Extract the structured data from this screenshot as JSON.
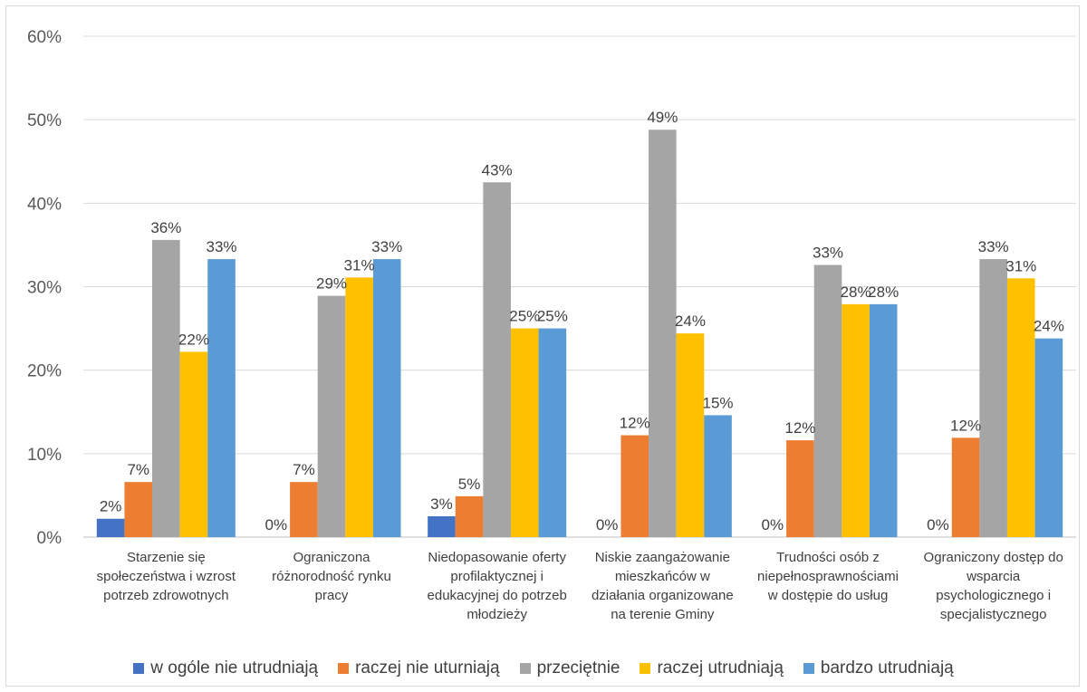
{
  "chart_data": {
    "type": "bar",
    "title": "",
    "xlabel": "",
    "ylabel": "",
    "ylim": [
      0,
      0.6
    ],
    "yticks": [
      "0%",
      "10%",
      "20%",
      "30%",
      "40%",
      "50%",
      "60%"
    ],
    "grid": true,
    "legend_position": "bottom",
    "categories": [
      [
        "Starzenie się",
        "społeczeństwa i wzrost",
        "potrzeb zdrowotnych"
      ],
      [
        "Ograniczona",
        "różnorodność rynku",
        "pracy"
      ],
      [
        "Niedopasowanie oferty",
        "profilaktycznej i",
        "edukacyjnej do potrzeb",
        "młodzieży"
      ],
      [
        "Niskie zaangażowanie",
        "mieszkańców w",
        "działania organizowane",
        "na terenie Gminy"
      ],
      [
        "Trudności osób z",
        "niepełnosprawnościami",
        "w dostępie do usług"
      ],
      [
        "Ograniczony dostęp do",
        "wsparcia",
        "psychologicznego i",
        "specjalistycznego"
      ]
    ],
    "series": [
      {
        "name": "w ogóle nie utrudniają",
        "color": "#4472C4",
        "values": [
          0.022,
          0.0,
          0.025,
          0.0,
          0.0,
          0.0
        ],
        "labels": [
          "2%",
          "0%",
          "3%",
          "0%",
          "0%",
          "0%"
        ]
      },
      {
        "name": "raczej nie uturniają",
        "color": "#ED7D31",
        "values": [
          0.066,
          0.066,
          0.049,
          0.122,
          0.116,
          0.119
        ],
        "labels": [
          "7%",
          "7%",
          "5%",
          "12%",
          "12%",
          "12%"
        ]
      },
      {
        "name": "przeciętnie",
        "color": "#A5A5A5",
        "values": [
          0.356,
          0.289,
          0.425,
          0.488,
          0.326,
          0.333
        ],
        "labels": [
          "36%",
          "29%",
          "43%",
          "49%",
          "33%",
          "33%"
        ]
      },
      {
        "name": "raczej utrudniają",
        "color": "#FFC000",
        "values": [
          0.222,
          0.311,
          0.25,
          0.244,
          0.279,
          0.31
        ],
        "labels": [
          "22%",
          "31%",
          "25%",
          "24%",
          "28%",
          "31%"
        ]
      },
      {
        "name": "bardzo utrudniają",
        "color": "#5B9BD5",
        "values": [
          0.333,
          0.333,
          0.25,
          0.146,
          0.279,
          0.238
        ],
        "labels": [
          "33%",
          "33%",
          "25%",
          "15%",
          "28%",
          "24%"
        ]
      }
    ]
  }
}
